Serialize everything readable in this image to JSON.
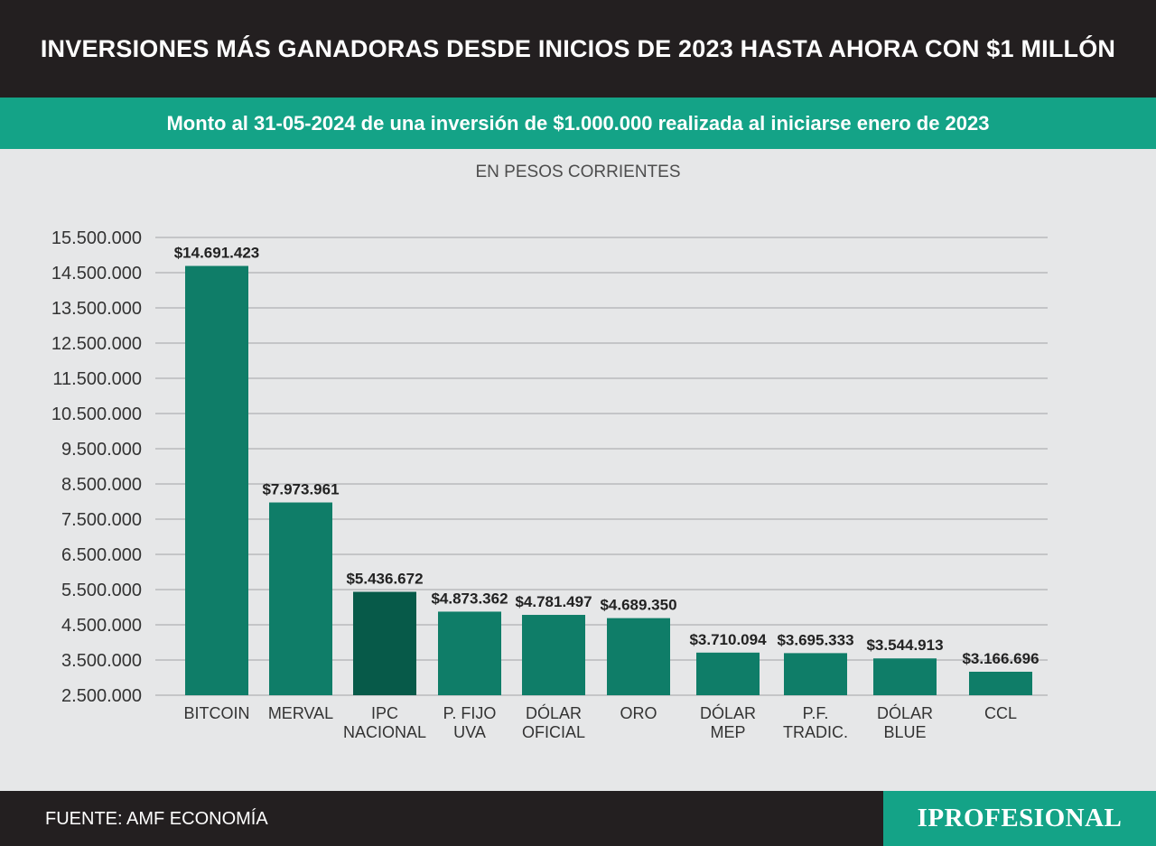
{
  "header": {
    "title": "INVERSIONES MÁS GANADORAS DESDE INICIOS DE 2023 HASTA AHORA CON $1 MILLÓN",
    "subtitle": "Monto al 31-05-2024 de una inversión de $1.000.000 realizada al iniciarse enero de 2023",
    "unit": "EN PESOS CORRIENTES"
  },
  "footer": {
    "source": "FUENTE: AMF ECONOMÍA",
    "logo": "IPROFESIONAL"
  },
  "colors": {
    "bar": "#0f7d68",
    "bar_highlight": "#075a49",
    "header_bg": "#231f20",
    "accent": "#14a387",
    "grid": "#c4c5c7",
    "background": "#e6e7e8"
  },
  "chart_data": {
    "type": "bar",
    "title": "",
    "xlabel": "",
    "ylabel": "",
    "ylim": [
      2500000,
      15500000
    ],
    "grid": true,
    "yticks": [
      2500000,
      3500000,
      4500000,
      5500000,
      6500000,
      7500000,
      8500000,
      9500000,
      10500000,
      11500000,
      12500000,
      13500000,
      14500000,
      15500000
    ],
    "ytick_labels": [
      "2.500.000",
      "3.500.000",
      "4.500.000",
      "5.500.000",
      "6.500.000",
      "7.500.000",
      "8.500.000",
      "9.500.000",
      "10.500.000",
      "11.500.000",
      "12.500.000",
      "13.500.000",
      "14.500.000",
      "15.500.000"
    ],
    "categories": [
      [
        "BITCOIN"
      ],
      [
        "MERVAL"
      ],
      [
        "IPC",
        "NACIONAL"
      ],
      [
        "P. FIJO",
        "UVA"
      ],
      [
        "DÓLAR",
        "OFICIAL"
      ],
      [
        "ORO"
      ],
      [
        "DÓLAR",
        "MEP"
      ],
      [
        "P.F.",
        "TRADIC."
      ],
      [
        "DÓLAR",
        "BLUE"
      ],
      [
        "CCL"
      ]
    ],
    "values": [
      14691423,
      7973961,
      5436672,
      4873362,
      4781497,
      4689350,
      3710094,
      3695333,
      3544913,
      3166696
    ],
    "value_labels": [
      "$14.691.423",
      "$7.973.961",
      "$5.436.672",
      "$4.873.362",
      "$4.781.497",
      "$4.689.350",
      "$3.710.094",
      "$3.695.333",
      "$3.544.913",
      "$3.166.696"
    ],
    "highlight_index": 2
  }
}
